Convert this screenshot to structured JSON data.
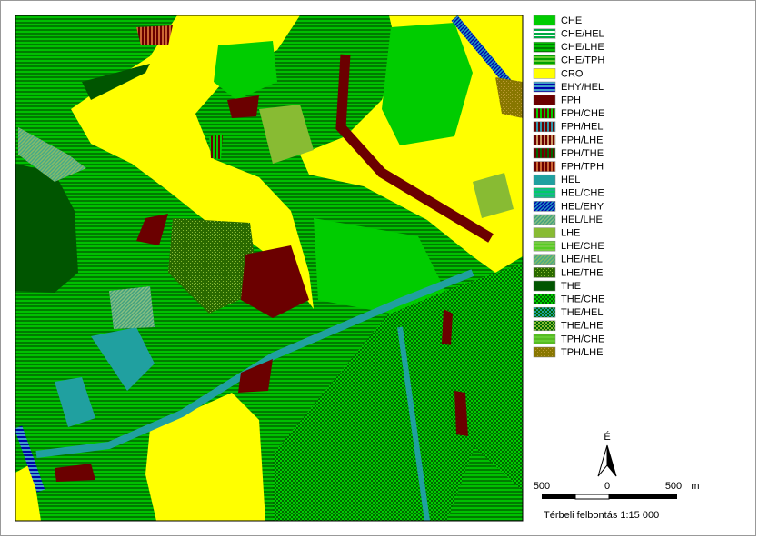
{
  "legend": [
    {
      "label": "CHE",
      "pattern": "solid",
      "color": "#00cc00",
      "color2": "#00cc00"
    },
    {
      "label": "CHE/HEL",
      "pattern": "hstripe",
      "color": "#00aa44",
      "color2": "#ffffff"
    },
    {
      "label": "CHE/LHE",
      "pattern": "hstripe",
      "color": "#007a00",
      "color2": "#00c000"
    },
    {
      "label": "CHE/TPH",
      "pattern": "hstripe",
      "color": "#00a000",
      "color2": "#66cc33"
    },
    {
      "label": "CRO",
      "pattern": "solid",
      "color": "#ffff00",
      "color2": "#ffff00"
    },
    {
      "label": "EHY/HEL",
      "pattern": "hstripe",
      "color": "#0000aa",
      "color2": "#3fa0c8"
    },
    {
      "label": "FPH",
      "pattern": "solid",
      "color": "#6b0000",
      "color2": "#6b0000"
    },
    {
      "label": "FPH/CHE",
      "pattern": "vstripe",
      "color": "#6b0000",
      "color2": "#00cc00"
    },
    {
      "label": "FPH/HEL",
      "pattern": "vstripe",
      "color": "#6b0000",
      "color2": "#3399aa"
    },
    {
      "label": "FPH/LHE",
      "pattern": "vstripe",
      "color": "#6b0000",
      "color2": "#cc9966"
    },
    {
      "label": "FPH/THE",
      "pattern": "vstripe",
      "color": "#6b0000",
      "color2": "#006600"
    },
    {
      "label": "FPH/TPH",
      "pattern": "vstripe",
      "color": "#6b0000",
      "color2": "#cc6633"
    },
    {
      "label": "HEL",
      "pattern": "solid",
      "color": "#20a0a0",
      "color2": "#20a0a0"
    },
    {
      "label": "HEL/CHE",
      "pattern": "hstripe",
      "color": "#20b090",
      "color2": "#00cc66"
    },
    {
      "label": "HEL/EHY",
      "pattern": "diag",
      "color": "#0000aa",
      "color2": "#20a0c0"
    },
    {
      "label": "HEL/LHE",
      "pattern": "diag",
      "color": "#40a080",
      "color2": "#88c080"
    },
    {
      "label": "LHE",
      "pattern": "solid",
      "color": "#88bb33",
      "color2": "#88bb33"
    },
    {
      "label": "LHE/CHE",
      "pattern": "hstripe",
      "color": "#55cc22",
      "color2": "#77cc44"
    },
    {
      "label": "LHE/HEL",
      "pattern": "diag",
      "color": "#44aa88",
      "color2": "#88bb66"
    },
    {
      "label": "LHE/THE",
      "pattern": "dots",
      "color": "#88bb33",
      "color2": "#2a6a00"
    },
    {
      "label": "THE",
      "pattern": "solid",
      "color": "#005500",
      "color2": "#005500"
    },
    {
      "label": "THE/CHE",
      "pattern": "check",
      "color": "#006600",
      "color2": "#00cc00"
    },
    {
      "label": "THE/HEL",
      "pattern": "check",
      "color": "#006600",
      "color2": "#20a0a0"
    },
    {
      "label": "THE/LHE",
      "pattern": "check",
      "color": "#006600",
      "color2": "#88bb33"
    },
    {
      "label": "TPH/CHE",
      "pattern": "hstripe",
      "color": "#55bb22",
      "color2": "#66cc33"
    },
    {
      "label": "TPH/LHE",
      "pattern": "dots",
      "color": "#bb9933",
      "color2": "#887700"
    }
  ],
  "north_label": "É",
  "scale": {
    "labels": [
      "500",
      "0",
      "500"
    ],
    "unit": "m"
  },
  "resolution": "Térbeli felbontás 1:15 000"
}
